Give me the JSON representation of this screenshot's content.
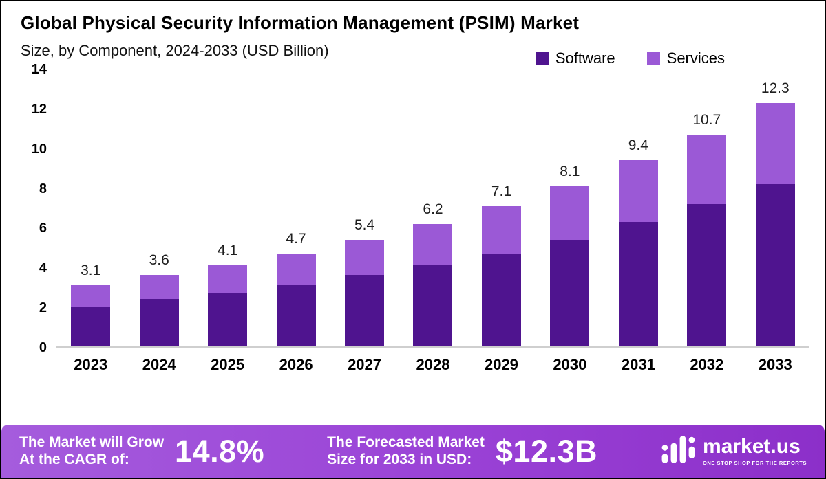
{
  "header": {
    "title": "Global Physical Security Information Management (PSIM) Market",
    "subtitle": "Size, by Component, 2024-2033 (USD Billion)"
  },
  "chart_data": {
    "type": "bar",
    "stacked": true,
    "title": "Global Physical Security Information Management (PSIM) Market Size, by Component, 2024-2033 (USD Billion)",
    "categories": [
      "2023",
      "2024",
      "2025",
      "2026",
      "2027",
      "2028",
      "2029",
      "2030",
      "2031",
      "2032",
      "2033"
    ],
    "series": [
      {
        "name": "Software",
        "color": "#4f148f",
        "values": [
          2.0,
          2.4,
          2.7,
          3.1,
          3.6,
          4.1,
          4.7,
          5.4,
          6.3,
          7.2,
          8.2
        ]
      },
      {
        "name": "Services",
        "color": "#9b59d6",
        "values": [
          1.1,
          1.2,
          1.4,
          1.6,
          1.8,
          2.1,
          2.4,
          2.7,
          3.1,
          3.5,
          4.1
        ]
      }
    ],
    "totals": [
      3.1,
      3.6,
      4.1,
      4.7,
      5.4,
      6.2,
      7.1,
      8.1,
      9.4,
      10.7,
      12.3
    ],
    "xlabel": "",
    "ylabel": "",
    "ylim": [
      0,
      14
    ],
    "yticks": [
      0,
      2,
      4,
      6,
      8,
      10,
      12,
      14
    ],
    "grid": false,
    "legend_position": "top-right"
  },
  "footer": {
    "cagr_label_line1": "The Market will Grow",
    "cagr_label_line2": "At the CAGR of:",
    "cagr_value": "14.8%",
    "forecast_label_line1": "The Forecasted Market",
    "forecast_label_line2": "Size for 2033 in USD:",
    "forecast_value": "$12.3B",
    "brand": "market.us",
    "brand_tagline": "ONE STOP SHOP FOR THE REPORTS"
  }
}
